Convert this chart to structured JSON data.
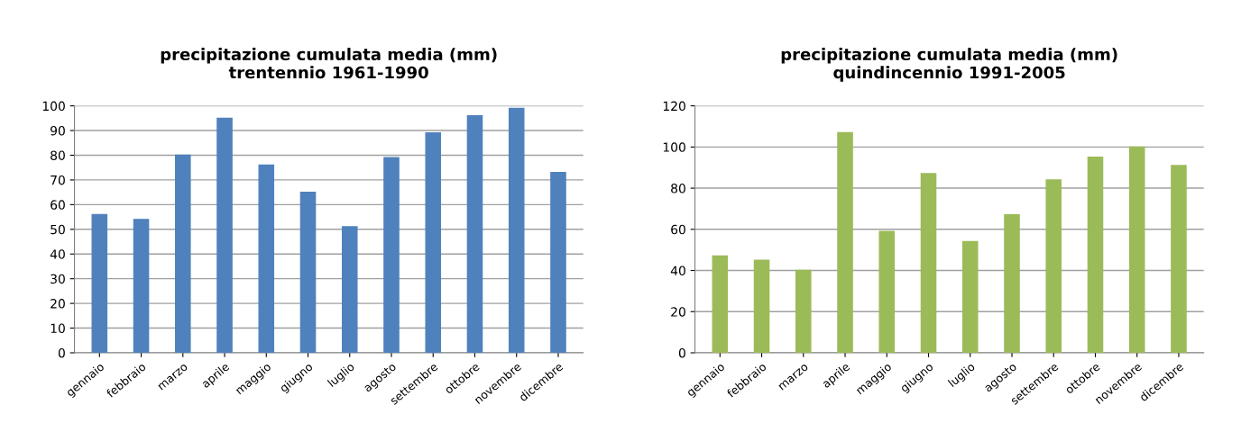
{
  "chart_data": [
    {
      "type": "bar",
      "title": "precipitazione cumulata media (mm)\ntrentennio 1961-1990",
      "categories": [
        "gennaio",
        "febbraio",
        "marzo",
        "aprile",
        "maggio",
        "giugno",
        "luglio",
        "agosto",
        "settembre",
        "ottobre",
        "novembre",
        "dicembre"
      ],
      "series": [
        {
          "color": "#4f81bd",
          "values": [
            56,
            54,
            80,
            95,
            76,
            65,
            51,
            79,
            89,
            96,
            99,
            73
          ]
        }
      ],
      "ylim": [
        0,
        100
      ],
      "yticks": [
        0,
        10,
        20,
        30,
        40,
        50,
        60,
        70,
        80,
        90,
        100
      ],
      "grid": "y",
      "legend": false
    },
    {
      "type": "bar",
      "title": "precipitazione cumulata media (mm)\nquindincennio 1991-2005",
      "categories": [
        "gennaio",
        "febbraio",
        "marzo",
        "aprile",
        "maggio",
        "giugno",
        "luglio",
        "agosto",
        "settembre",
        "ottobre",
        "novembre",
        "dicembre"
      ],
      "series": [
        {
          "color": "#9bbb59",
          "values": [
            47,
            45,
            40,
            107,
            59,
            87,
            54,
            67,
            84,
            95,
            100,
            91
          ]
        }
      ],
      "ylim": [
        0,
        120
      ],
      "yticks": [
        0,
        20,
        40,
        60,
        80,
        100,
        120
      ],
      "grid": "y",
      "legend": false
    }
  ]
}
